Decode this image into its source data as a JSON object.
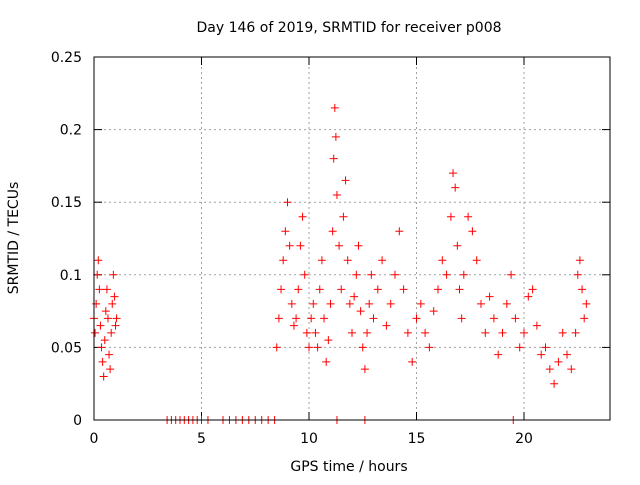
{
  "chart_data": {
    "type": "scatter",
    "title": "Day 146 of 2019, SRMTID for receiver p008",
    "xlabel": "GPS time / hours",
    "ylabel": "SRMTID / TECUs",
    "xlim": [
      0,
      24
    ],
    "ylim": [
      0,
      0.25
    ],
    "xticks": [
      0,
      5,
      10,
      15,
      20
    ],
    "xtick_labels": [
      "0",
      "5",
      "10",
      "15",
      "20"
    ],
    "yticks": [
      0,
      0.05,
      0.1,
      0.15,
      0.2,
      0.25
    ],
    "ytick_labels": [
      "0",
      "0.05",
      "0.1",
      "0.15",
      "0.2",
      "0.25"
    ],
    "grid": true,
    "marker": "+",
    "series": [
      {
        "name": "SRMTID",
        "color": "#ff0000",
        "points": [
          [
            0.0,
            0.07
          ],
          [
            0.05,
            0.06
          ],
          [
            0.1,
            0.08
          ],
          [
            0.15,
            0.1
          ],
          [
            0.2,
            0.11
          ],
          [
            0.25,
            0.09
          ],
          [
            0.3,
            0.065
          ],
          [
            0.35,
            0.05
          ],
          [
            0.4,
            0.04
          ],
          [
            0.45,
            0.03
          ],
          [
            0.5,
            0.055
          ],
          [
            0.55,
            0.075
          ],
          [
            0.6,
            0.09
          ],
          [
            0.65,
            0.07
          ],
          [
            0.7,
            0.045
          ],
          [
            0.75,
            0.035
          ],
          [
            0.8,
            0.06
          ],
          [
            0.85,
            0.08
          ],
          [
            0.9,
            0.1
          ],
          [
            0.95,
            0.085
          ],
          [
            1.0,
            0.065
          ],
          [
            1.05,
            0.07
          ],
          [
            3.4,
            0.0
          ],
          [
            3.6,
            0.0
          ],
          [
            3.8,
            0.0
          ],
          [
            4.0,
            0.0
          ],
          [
            4.2,
            0.0
          ],
          [
            4.4,
            0.0
          ],
          [
            4.6,
            0.0
          ],
          [
            4.8,
            0.0
          ],
          [
            5.0,
            0.0
          ],
          [
            5.3,
            0.0
          ],
          [
            6.0,
            0.0
          ],
          [
            6.3,
            0.0
          ],
          [
            6.6,
            0.0
          ],
          [
            6.9,
            0.0
          ],
          [
            7.2,
            0.0
          ],
          [
            7.5,
            0.0
          ],
          [
            7.8,
            0.0
          ],
          [
            8.1,
            0.0
          ],
          [
            8.4,
            0.0
          ],
          [
            11.3,
            0.0
          ],
          [
            12.6,
            0.0
          ],
          [
            19.5,
            0.0
          ],
          [
            8.5,
            0.05
          ],
          [
            8.6,
            0.07
          ],
          [
            8.7,
            0.09
          ],
          [
            8.8,
            0.11
          ],
          [
            8.9,
            0.13
          ],
          [
            9.0,
            0.15
          ],
          [
            9.1,
            0.12
          ],
          [
            9.2,
            0.08
          ],
          [
            9.3,
            0.065
          ],
          [
            9.4,
            0.07
          ],
          [
            9.5,
            0.09
          ],
          [
            9.6,
            0.12
          ],
          [
            9.7,
            0.14
          ],
          [
            9.8,
            0.1
          ],
          [
            9.9,
            0.06
          ],
          [
            10.0,
            0.05
          ],
          [
            10.1,
            0.07
          ],
          [
            10.2,
            0.08
          ],
          [
            10.3,
            0.06
          ],
          [
            10.4,
            0.05
          ],
          [
            10.5,
            0.09
          ],
          [
            10.6,
            0.11
          ],
          [
            10.7,
            0.07
          ],
          [
            10.8,
            0.04
          ],
          [
            10.9,
            0.055
          ],
          [
            11.0,
            0.08
          ],
          [
            11.1,
            0.13
          ],
          [
            11.15,
            0.18
          ],
          [
            11.2,
            0.215
          ],
          [
            11.25,
            0.195
          ],
          [
            11.3,
            0.155
          ],
          [
            11.4,
            0.12
          ],
          [
            11.5,
            0.09
          ],
          [
            11.6,
            0.14
          ],
          [
            11.7,
            0.165
          ],
          [
            11.8,
            0.11
          ],
          [
            11.9,
            0.08
          ],
          [
            12.0,
            0.06
          ],
          [
            12.1,
            0.085
          ],
          [
            12.2,
            0.1
          ],
          [
            12.3,
            0.12
          ],
          [
            12.4,
            0.075
          ],
          [
            12.5,
            0.05
          ],
          [
            12.6,
            0.035
          ],
          [
            12.7,
            0.06
          ],
          [
            12.8,
            0.08
          ],
          [
            12.9,
            0.1
          ],
          [
            13.0,
            0.07
          ],
          [
            13.2,
            0.09
          ],
          [
            13.4,
            0.11
          ],
          [
            13.6,
            0.065
          ],
          [
            13.8,
            0.08
          ],
          [
            14.0,
            0.1
          ],
          [
            14.2,
            0.13
          ],
          [
            14.4,
            0.09
          ],
          [
            14.6,
            0.06
          ],
          [
            14.8,
            0.04
          ],
          [
            15.0,
            0.07
          ],
          [
            15.2,
            0.08
          ],
          [
            15.4,
            0.06
          ],
          [
            15.6,
            0.05
          ],
          [
            15.8,
            0.075
          ],
          [
            16.0,
            0.09
          ],
          [
            16.2,
            0.11
          ],
          [
            16.4,
            0.1
          ],
          [
            16.6,
            0.14
          ],
          [
            16.7,
            0.17
          ],
          [
            16.8,
            0.16
          ],
          [
            16.9,
            0.12
          ],
          [
            17.0,
            0.09
          ],
          [
            17.1,
            0.07
          ],
          [
            17.2,
            0.1
          ],
          [
            17.4,
            0.14
          ],
          [
            17.6,
            0.13
          ],
          [
            17.8,
            0.11
          ],
          [
            18.0,
            0.08
          ],
          [
            18.2,
            0.06
          ],
          [
            18.4,
            0.085
          ],
          [
            18.6,
            0.07
          ],
          [
            18.8,
            0.045
          ],
          [
            19.0,
            0.06
          ],
          [
            19.2,
            0.08
          ],
          [
            19.4,
            0.1
          ],
          [
            19.6,
            0.07
          ],
          [
            19.8,
            0.05
          ],
          [
            20.0,
            0.06
          ],
          [
            20.2,
            0.085
          ],
          [
            20.4,
            0.09
          ],
          [
            20.6,
            0.065
          ],
          [
            20.8,
            0.045
          ],
          [
            21.0,
            0.05
          ],
          [
            21.2,
            0.035
          ],
          [
            21.4,
            0.025
          ],
          [
            21.6,
            0.04
          ],
          [
            21.8,
            0.06
          ],
          [
            22.0,
            0.045
          ],
          [
            22.2,
            0.035
          ],
          [
            22.4,
            0.06
          ],
          [
            22.5,
            0.1
          ],
          [
            22.6,
            0.11
          ],
          [
            22.7,
            0.09
          ],
          [
            22.8,
            0.07
          ],
          [
            22.9,
            0.08
          ]
        ]
      }
    ]
  }
}
